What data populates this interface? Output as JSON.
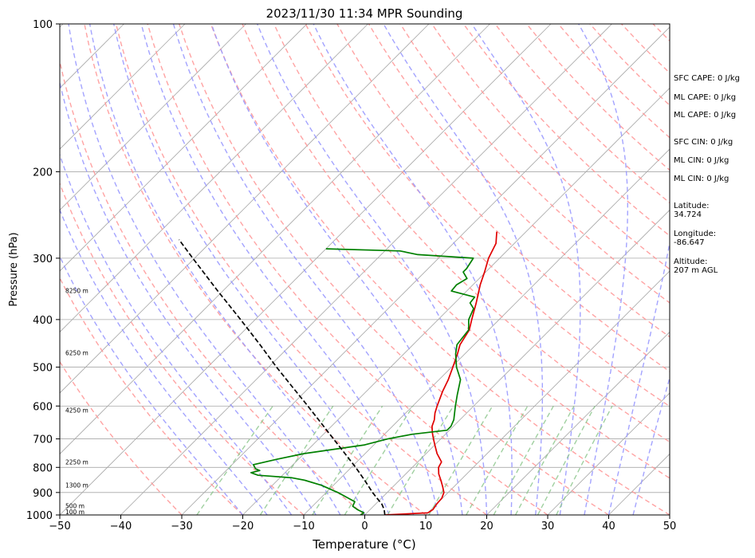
{
  "chart_data": {
    "type": "line",
    "title": "2023/11/30 11:34 MPR Sounding",
    "xlabel": "Temperature (°C)",
    "ylabel": "Pressure (hPa)",
    "xlim": [
      -50,
      50
    ],
    "ylim": [
      1000,
      100
    ],
    "y_scale": "log",
    "x_ticks": [
      -50,
      -40,
      -30,
      -20,
      -10,
      0,
      10,
      20,
      30,
      40,
      50
    ],
    "x_tick_labels": [
      "−50",
      "−40",
      "−30",
      "−20",
      "−10",
      "0",
      "10",
      "20",
      "30",
      "40",
      "50"
    ],
    "y_ticks": [
      1000,
      900,
      800,
      700,
      600,
      500,
      400,
      300,
      200,
      100
    ],
    "y_tick_labels": [
      "1000",
      "900",
      "800",
      "700",
      "600",
      "500",
      "400",
      "300",
      "200",
      "100"
    ],
    "grid": true,
    "colors": {
      "temperature": "#e00000",
      "dewpoint": "#008000",
      "parcel": "#000000",
      "dry_adiabat": "#ff9999",
      "moist_adiabat": "#9999ff",
      "mixing_ratio": "#88c488",
      "isotherm": "#a8a8a8"
    },
    "series": [
      {
        "points": [
          [
            1000,
            3.3
          ],
          [
            990,
            10.0
          ],
          [
            975,
            10.3
          ],
          [
            950,
            10.0
          ],
          [
            925,
            9.9
          ],
          [
            900,
            9.3
          ],
          [
            875,
            8.1
          ],
          [
            850,
            6.8
          ],
          [
            825,
            5.4
          ],
          [
            800,
            4.3
          ],
          [
            780,
            3.9
          ],
          [
            750,
            1.8
          ],
          [
            720,
            0.0
          ],
          [
            700,
            -1.2
          ],
          [
            680,
            -2.4
          ],
          [
            660,
            -3.5
          ],
          [
            640,
            -4.2
          ],
          [
            620,
            -5.2
          ],
          [
            600,
            -6.0
          ],
          [
            560,
            -7.5
          ],
          [
            530,
            -8.5
          ],
          [
            500,
            -9.8
          ],
          [
            470,
            -11.2
          ],
          [
            450,
            -12.3
          ],
          [
            420,
            -13.2
          ],
          [
            400,
            -14.5
          ],
          [
            370,
            -16.5
          ],
          [
            340,
            -18.8
          ],
          [
            320,
            -20.2
          ],
          [
            300,
            -21.8
          ],
          [
            280,
            -23.0
          ],
          [
            265,
            -24.8
          ]
        ]
      },
      {
        "points": [
          [
            1000,
            -0.7
          ],
          [
            990,
            -0.5
          ],
          [
            975,
            -2.1
          ],
          [
            960,
            -3.4
          ],
          [
            940,
            -3.8
          ],
          [
            900,
            -8.1
          ],
          [
            870,
            -12.0
          ],
          [
            850,
            -15.5
          ],
          [
            840,
            -18.0
          ],
          [
            830,
            -24.0
          ],
          [
            820,
            -25.6
          ],
          [
            812,
            -24.5
          ],
          [
            805,
            -25.5
          ],
          [
            790,
            -26.5
          ],
          [
            770,
            -23.5
          ],
          [
            750,
            -20.0
          ],
          [
            720,
            -11.5
          ],
          [
            700,
            -8.7
          ],
          [
            685,
            -5.5
          ],
          [
            672,
            -0.4
          ],
          [
            660,
            -0.4
          ],
          [
            640,
            -1.0
          ],
          [
            600,
            -3.0
          ],
          [
            570,
            -4.5
          ],
          [
            530,
            -6.5
          ],
          [
            500,
            -9.2
          ],
          [
            470,
            -11.5
          ],
          [
            450,
            -12.8
          ],
          [
            420,
            -13.3
          ],
          [
            400,
            -15.0
          ],
          [
            380,
            -16.0
          ],
          [
            370,
            -17.5
          ],
          [
            360,
            -17.7
          ],
          [
            350,
            -22.5
          ],
          [
            340,
            -22.7
          ],
          [
            330,
            -22.0
          ],
          [
            320,
            -23.7
          ],
          [
            315,
            -23.7
          ],
          [
            300,
            -24.3
          ],
          [
            295,
            -34.0
          ],
          [
            290,
            -37.5
          ],
          [
            287,
            -50.0
          ]
        ]
      },
      {
        "points": [
          [
            1000,
            3.3
          ],
          [
            975,
            2.3
          ],
          [
            950,
            1.0
          ],
          [
            925,
            -0.7
          ],
          [
            900,
            -2.4
          ],
          [
            850,
            -5.7
          ],
          [
            800,
            -9.3
          ],
          [
            750,
            -13.3
          ],
          [
            700,
            -17.6
          ],
          [
            650,
            -22.2
          ],
          [
            600,
            -27.2
          ],
          [
            550,
            -32.7
          ],
          [
            500,
            -38.7
          ],
          [
            450,
            -45.1
          ],
          [
            400,
            -52.4
          ],
          [
            350,
            -60.8
          ],
          [
            300,
            -70.3
          ],
          [
            275,
            -75.6
          ]
        ]
      }
    ],
    "height_labels": [
      {
        "p": 986,
        "text": "100 m"
      },
      {
        "p": 958,
        "text": "500 m"
      },
      {
        "p": 869,
        "text": "1300 m"
      },
      {
        "p": 780,
        "text": "2250 m"
      },
      {
        "p": 612,
        "text": "4250 m"
      },
      {
        "p": 467,
        "text": "6250 m"
      },
      {
        "p": 349,
        "text": "8250 m"
      }
    ]
  },
  "side_panel": {
    "sfc_cape": "SFC CAPE: 0 J/kg",
    "ml_cape_1": "ML CAPE: 0 J/kg",
    "ml_cape_2": "ML CAPE: 0 J/kg",
    "sfc_cin": "SFC CIN: 0 J/kg",
    "ml_cin_1": "ML CIN: 0 J/kg",
    "ml_cin_2": "ML CIN: 0 J/kg",
    "latitude_label": "Latitude:",
    "latitude_value": "34.724",
    "longitude_label": "Longitude:",
    "longitude_value": "-86.647",
    "altitude_label": "Altitude:",
    "altitude_value": "207 m AGL"
  }
}
